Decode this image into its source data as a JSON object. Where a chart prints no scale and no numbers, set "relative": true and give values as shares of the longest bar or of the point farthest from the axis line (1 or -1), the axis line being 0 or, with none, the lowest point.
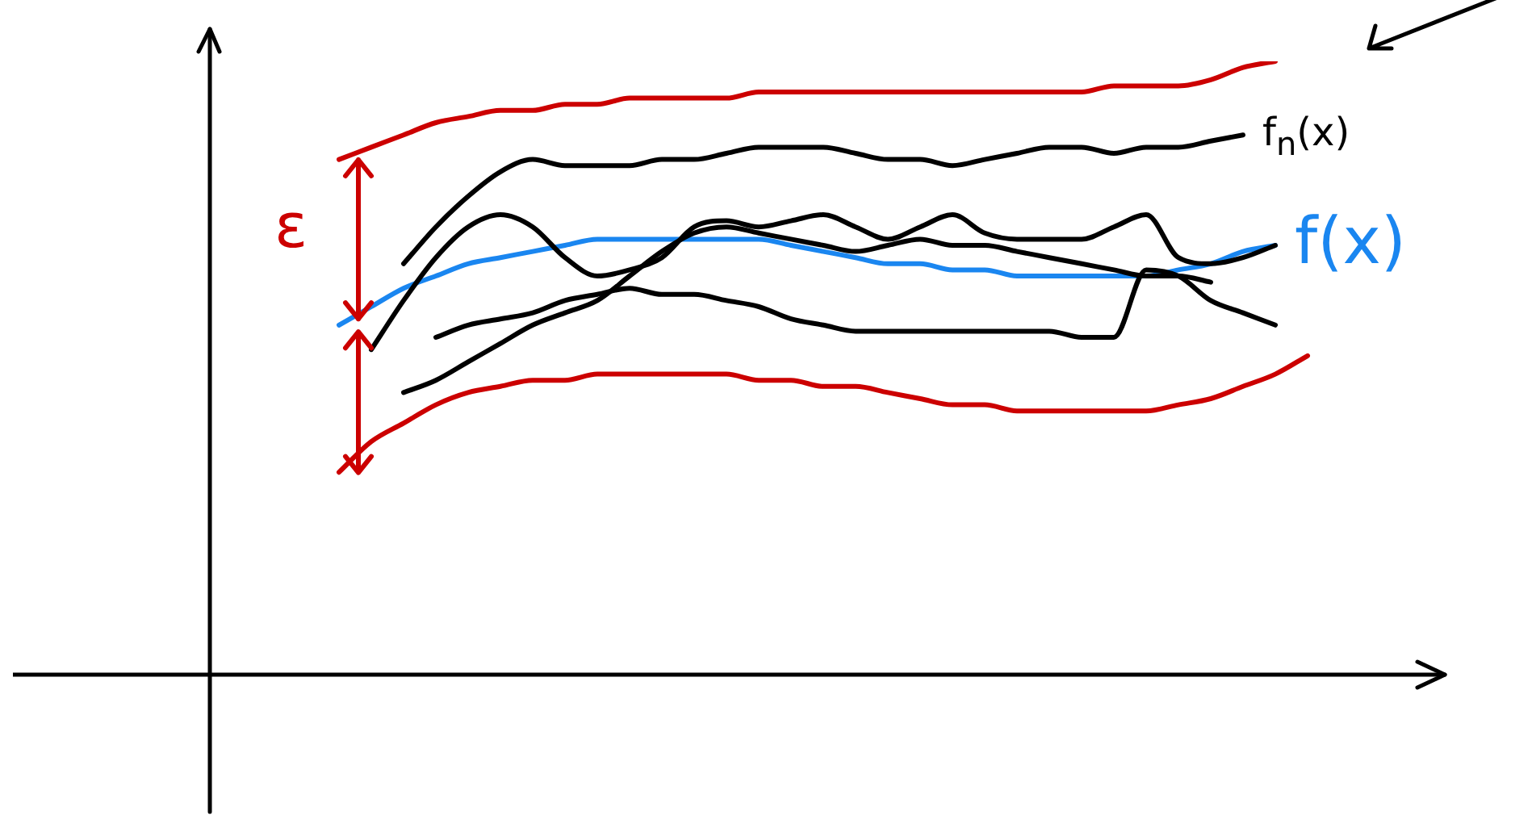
{
  "chart_data": {
    "type": "line",
    "relative": true,
    "legend": false,
    "grid": false,
    "marker": "none",
    "line_style": "solid",
    "categories": [
      null,
      null,
      null,
      null,
      null,
      null,
      null,
      null,
      null,
      null,
      null,
      null,
      null,
      null,
      null,
      null,
      null,
      null,
      null,
      null,
      null,
      null,
      null,
      null,
      null,
      null,
      null,
      null,
      null,
      null,
      null,
      null,
      null,
      null,
      null,
      null,
      null,
      null,
      null
    ],
    "series": [
      {
        "color": "#cc0000",
        "values": [
          null,
          null,
          null,
          null,
          0.84,
          0.86,
          0.88,
          0.9,
          0.91,
          0.92,
          0.92,
          0.93,
          0.93,
          0.94,
          0.94,
          0.94,
          0.94,
          0.95,
          0.95,
          0.95,
          0.95,
          0.95,
          0.95,
          0.95,
          0.95,
          0.95,
          0.95,
          0.95,
          0.96,
          0.96,
          0.96,
          0.97,
          0.99,
          1,
          null,
          null,
          null,
          null,
          null
        ]
      },
      {
        "color": "#cc0000",
        "values": [
          null,
          null,
          null,
          null,
          0.33,
          0.38,
          0.41,
          0.44,
          0.46,
          0.47,
          0.48,
          0.48,
          0.49,
          0.49,
          0.49,
          0.49,
          0.49,
          0.48,
          0.48,
          0.47,
          0.47,
          0.46,
          0.45,
          0.44,
          0.44,
          0.43,
          0.43,
          0.43,
          0.43,
          0.43,
          0.44,
          0.45,
          0.47,
          0.49,
          0.52,
          null,
          null,
          null,
          null
        ]
      },
      {
        "color": "#000000",
        "name": "f$_{n}$(x)",
        "values": [
          null,
          null,
          null,
          null,
          null,
          null,
          0.67,
          0.73,
          0.78,
          0.82,
          0.84,
          0.83,
          0.83,
          0.83,
          0.84,
          0.84,
          0.85,
          0.86,
          0.86,
          0.86,
          0.85,
          0.84,
          0.84,
          0.83,
          0.84,
          0.85,
          0.86,
          0.86,
          0.85,
          0.86,
          0.86,
          0.87,
          0.88,
          null,
          null,
          null,
          null,
          null,
          null
        ]
      },
      {
        "color": "#000000",
        "values": [
          null,
          null,
          null,
          null,
          null,
          0.53,
          0.61,
          0.68,
          0.73,
          0.75,
          0.73,
          0.68,
          0.65,
          0.66,
          0.68,
          0.73,
          0.74,
          0.73,
          0.74,
          0.75,
          0.73,
          0.71,
          0.73,
          0.75,
          0.72,
          0.71,
          0.71,
          0.71,
          0.73,
          0.75,
          0.68,
          0.67,
          0.68,
          0.7,
          null,
          null,
          null,
          null,
          null
        ]
      },
      {
        "color": "#000000",
        "values": [
          null,
          null,
          null,
          null,
          null,
          null,
          null,
          0.55,
          0.57,
          0.58,
          0.59,
          0.61,
          0.62,
          0.63,
          0.62,
          0.62,
          0.61,
          0.6,
          0.58,
          0.57,
          0.56,
          0.56,
          0.56,
          0.56,
          0.56,
          0.56,
          0.56,
          0.55,
          0.55,
          0.66,
          0.65,
          0.61,
          0.59,
          0.57,
          null,
          null,
          null,
          null,
          null
        ]
      },
      {
        "color": "#000000",
        "values": [
          null,
          null,
          null,
          null,
          null,
          null,
          0.46,
          0.48,
          0.51,
          0.54,
          0.57,
          0.59,
          0.61,
          0.65,
          0.69,
          0.72,
          0.73,
          0.72,
          0.71,
          0.7,
          0.69,
          0.7,
          0.71,
          0.7,
          0.7,
          0.69,
          0.68,
          0.67,
          0.66,
          0.65,
          0.65,
          0.64,
          null,
          null,
          null,
          null,
          null,
          null,
          null
        ]
      },
      {
        "color": "#1a86f0",
        "name": "f(x)",
        "values": [
          null,
          null,
          null,
          null,
          0.57,
          0.6,
          0.63,
          0.65,
          0.67,
          0.68,
          0.69,
          0.7,
          0.71,
          0.71,
          0.71,
          0.71,
          0.71,
          0.71,
          0.7,
          0.69,
          0.68,
          0.67,
          0.67,
          0.66,
          0.66,
          0.65,
          0.65,
          0.65,
          0.65,
          0.65,
          0.66,
          0.67,
          0.69,
          0.7,
          null,
          null,
          null,
          null,
          null
        ]
      }
    ],
    "annotations": [
      "ε"
    ]
  }
}
